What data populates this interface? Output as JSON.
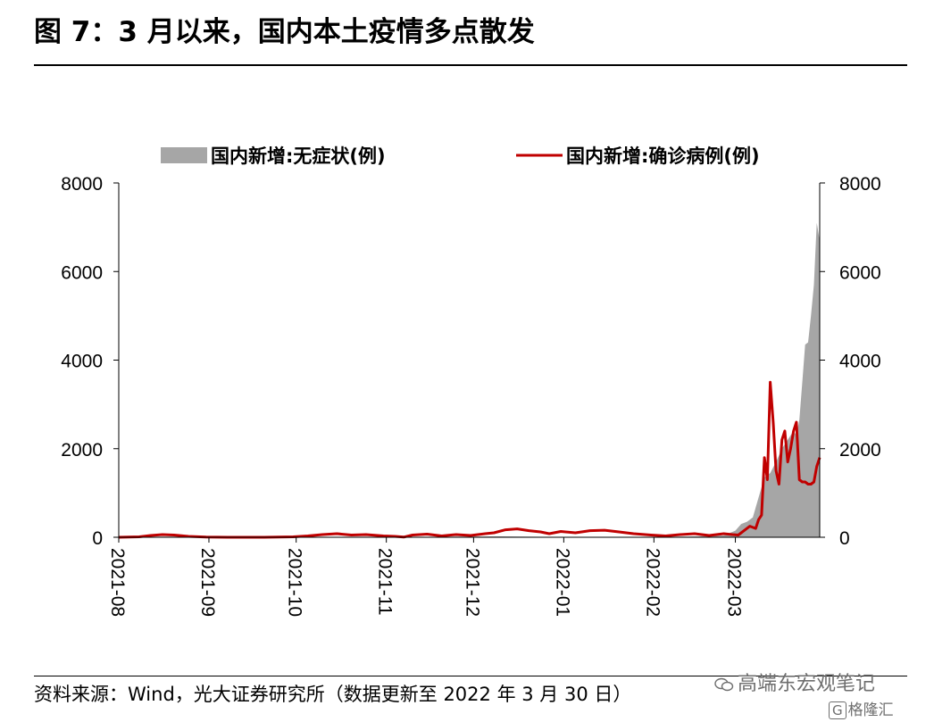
{
  "header": {
    "title": "图 7：3 月以来，国内本土疫情多点散发"
  },
  "footer": {
    "source": "资料来源：Wind，光大证券研究所（数据更新至 2022 年 3 月 30 日）",
    "watermark": "高端东宏观笔记",
    "brand": "格隆汇"
  },
  "chart_data": {
    "type": "area",
    "x_type": "date",
    "legend_position": "top",
    "grid": false,
    "ylim_left": [
      0,
      8000
    ],
    "ylim_right": [
      0,
      8000
    ],
    "yticks": [
      0,
      2000,
      4000,
      6000,
      8000
    ],
    "xlim": [
      "2021-08-01",
      "2022-03-30"
    ],
    "xticks": [
      "2021-08",
      "2021-09",
      "2021-10",
      "2021-11",
      "2021-12",
      "2022-01",
      "2022-02",
      "2022-03"
    ],
    "colors": {
      "asymptomatic": "#a6a6a6",
      "confirmed": "#c00000"
    },
    "series": [
      {
        "name": "国内新增:无症状(例)",
        "kind": "area",
        "axis": "left",
        "x": [
          "2021-08-01",
          "2021-08-10",
          "2021-08-20",
          "2021-08-31",
          "2021-09-15",
          "2021-09-30",
          "2021-10-15",
          "2021-10-31",
          "2021-11-05",
          "2021-11-20",
          "2021-11-30",
          "2021-12-10",
          "2021-12-25",
          "2022-01-10",
          "2022-01-25",
          "2022-02-05",
          "2022-02-15",
          "2022-02-25",
          "2022-03-01",
          "2022-03-03",
          "2022-03-05",
          "2022-03-07",
          "2022-03-09",
          "2022-03-11",
          "2022-03-13",
          "2022-03-15",
          "2022-03-17",
          "2022-03-19",
          "2022-03-21",
          "2022-03-22",
          "2022-03-23",
          "2022-03-24",
          "2022-03-25",
          "2022-03-26",
          "2022-03-27",
          "2022-03-28",
          "2022-03-29",
          "2022-03-30"
        ],
        "values": [
          0,
          10,
          15,
          5,
          0,
          0,
          5,
          10,
          5,
          10,
          15,
          20,
          10,
          10,
          5,
          10,
          20,
          40,
          150,
          300,
          350,
          450,
          900,
          1350,
          1450,
          1700,
          2000,
          2200,
          2400,
          2300,
          2650,
          3500,
          4350,
          4400,
          5000,
          5700,
          7100,
          6700
        ]
      },
      {
        "name": "国内新增:确诊病例(例)",
        "kind": "line",
        "axis": "right",
        "x": [
          "2021-08-01",
          "2021-08-08",
          "2021-08-12",
          "2021-08-16",
          "2021-08-20",
          "2021-08-25",
          "2021-08-31",
          "2021-09-10",
          "2021-09-20",
          "2021-09-30",
          "2021-10-05",
          "2021-10-10",
          "2021-10-15",
          "2021-10-20",
          "2021-10-25",
          "2021-10-31",
          "2021-11-04",
          "2021-11-07",
          "2021-11-10",
          "2021-11-15",
          "2021-11-20",
          "2021-11-25",
          "2021-11-30",
          "2021-12-05",
          "2021-12-08",
          "2021-12-12",
          "2021-12-16",
          "2021-12-20",
          "2021-12-24",
          "2021-12-27",
          "2021-12-31",
          "2022-01-05",
          "2022-01-10",
          "2022-01-15",
          "2022-01-20",
          "2022-01-25",
          "2022-01-31",
          "2022-02-05",
          "2022-02-10",
          "2022-02-15",
          "2022-02-20",
          "2022-02-25",
          "2022-02-28",
          "2022-03-02",
          "2022-03-04",
          "2022-03-06",
          "2022-03-08",
          "2022-03-09",
          "2022-03-10",
          "2022-03-11",
          "2022-03-12",
          "2022-03-13",
          "2022-03-14",
          "2022-03-15",
          "2022-03-16",
          "2022-03-17",
          "2022-03-18",
          "2022-03-19",
          "2022-03-20",
          "2022-03-21",
          "2022-03-22",
          "2022-03-23",
          "2022-03-24",
          "2022-03-25",
          "2022-03-26",
          "2022-03-27",
          "2022-03-28",
          "2022-03-29",
          "2022-03-30"
        ],
        "values": [
          0,
          10,
          40,
          60,
          50,
          20,
          5,
          0,
          0,
          10,
          30,
          60,
          80,
          50,
          60,
          30,
          20,
          5,
          50,
          70,
          30,
          60,
          40,
          80,
          100,
          170,
          190,
          150,
          120,
          80,
          130,
          100,
          150,
          160,
          120,
          80,
          50,
          30,
          60,
          80,
          40,
          80,
          60,
          50,
          150,
          250,
          200,
          400,
          500,
          1800,
          1300,
          3500,
          2600,
          1500,
          1200,
          2200,
          2400,
          1700,
          2000,
          2400,
          2600,
          1300,
          1250,
          1250,
          1200,
          1200,
          1250,
          1600,
          1800
        ]
      }
    ]
  }
}
